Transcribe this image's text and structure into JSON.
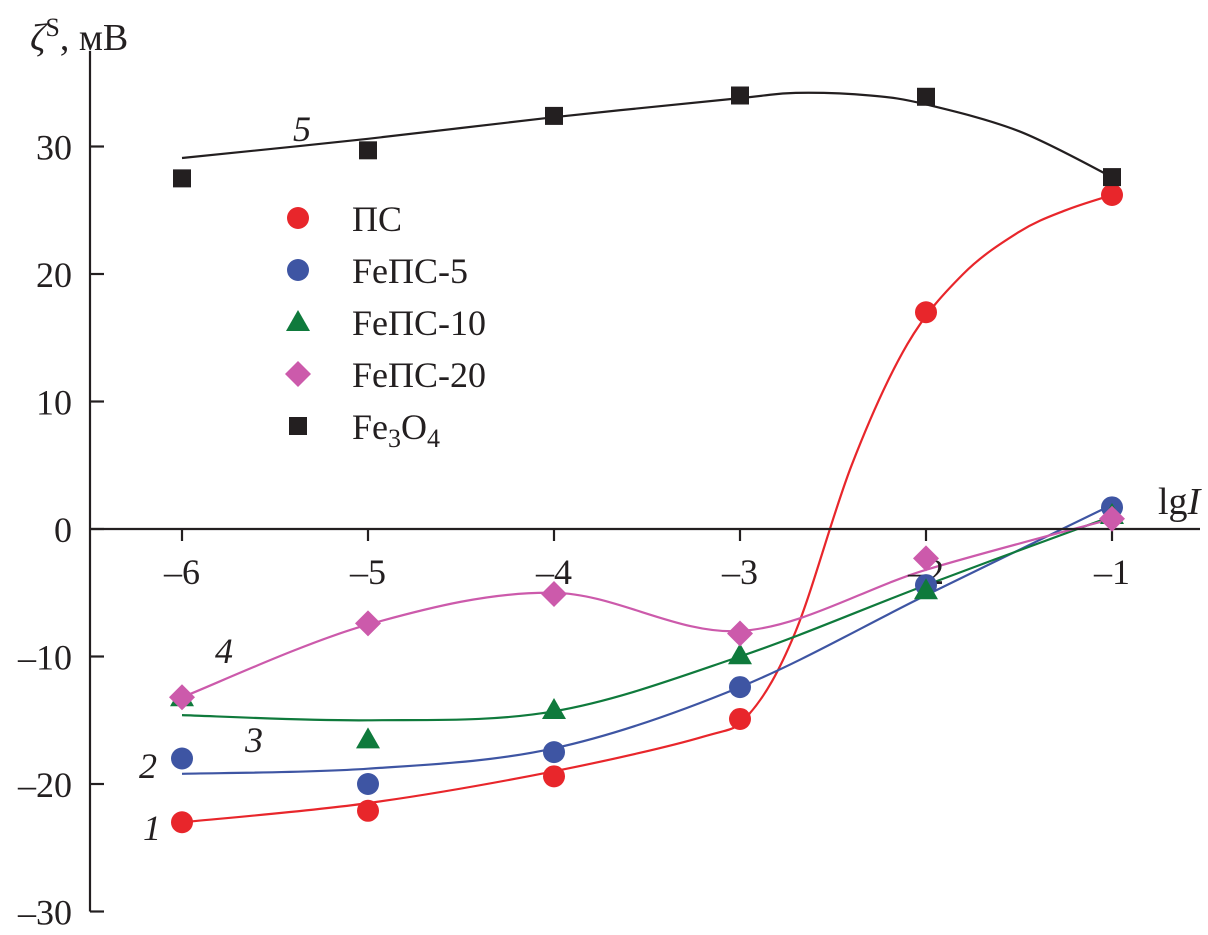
{
  "chart_data": {
    "type": "scatter",
    "title": "",
    "xlabel": "lgI",
    "xlabel_parts": [
      "lg",
      "I"
    ],
    "ylabel": "ζS, мВ",
    "ylabel_parts": [
      "ζ",
      "S",
      ", мВ"
    ],
    "xlim": [
      -6.55,
      -0.5
    ],
    "ylim": [
      -30,
      37
    ],
    "x_ticks": [
      -6,
      -5,
      -4,
      -3,
      -2,
      -1
    ],
    "x_tick_labels": [
      "–6",
      "–5",
      "–4",
      "–3",
      "–2",
      "–1"
    ],
    "y_ticks": [
      -30,
      -20,
      -10,
      0,
      10,
      20,
      30
    ],
    "y_tick_labels": [
      "–30",
      "–20",
      "–10",
      "0",
      "10",
      "20",
      "30"
    ],
    "grid": false,
    "legend_position": "upper-left",
    "series": [
      {
        "name": "ПС",
        "curve_label": "1",
        "color": "#e8262b",
        "marker": "circle",
        "x": [
          -6,
          -5,
          -4,
          -3,
          -2,
          -1
        ],
        "y": [
          -23.0,
          -22.1,
          -19.4,
          -14.9,
          17.0,
          26.2
        ],
        "fit": [
          [
            -6,
            -23.0
          ],
          [
            -5,
            -21.5
          ],
          [
            -4,
            -19.0
          ],
          [
            -3.2,
            -16.3
          ],
          [
            -2.95,
            -14.5
          ],
          [
            -2.7,
            -8.0
          ],
          [
            -2.4,
            5.0
          ],
          [
            -2.1,
            14.5
          ],
          [
            -1.8,
            20.0
          ],
          [
            -1.5,
            23.3
          ],
          [
            -1.25,
            25.0
          ],
          [
            -1.0,
            26.2
          ]
        ]
      },
      {
        "name": "FeПС-5",
        "curve_label": "2",
        "color": "#3e55a3",
        "marker": "circle",
        "x": [
          -6,
          -5,
          -4,
          -3,
          -2,
          -1
        ],
        "y": [
          -18.0,
          -20.0,
          -17.5,
          -12.4,
          -4.4,
          1.7
        ],
        "fit": [
          [
            -6,
            -19.2
          ],
          [
            -5,
            -18.8
          ],
          [
            -4,
            -17.2
          ],
          [
            -3,
            -12.4
          ],
          [
            -2,
            -5.2
          ],
          [
            -1,
            1.9
          ]
        ]
      },
      {
        "name": "FeПС-10",
        "curve_label": "3",
        "color": "#0f7a3c",
        "marker": "triangle",
        "x": [
          -6,
          -5,
          -4,
          -3,
          -2,
          -1
        ],
        "y": [
          -13.2,
          -16.5,
          -14.2,
          -9.9,
          -4.8,
          1.1
        ],
        "fit": [
          [
            -6,
            -14.6
          ],
          [
            -5,
            -15.0
          ],
          [
            -4,
            -14.3
          ],
          [
            -3,
            -10.0
          ],
          [
            -2,
            -4.4
          ],
          [
            -1,
            1.0
          ]
        ]
      },
      {
        "name": "FeПС-20",
        "curve_label": "4",
        "color": "#cc5aab",
        "marker": "diamond",
        "x": [
          -6,
          -5,
          -4,
          -3,
          -2,
          -1
        ],
        "y": [
          -13.2,
          -7.4,
          -5.1,
          -8.2,
          -2.3,
          0.8
        ],
        "fit": [
          [
            -6,
            -13.2
          ],
          [
            -5,
            -7.5
          ],
          [
            -4,
            -5.0
          ],
          [
            -3,
            -8.0
          ],
          [
            -2,
            -3.2
          ],
          [
            -1,
            0.8
          ]
        ]
      },
      {
        "name": "Fe3O4",
        "name_parts": [
          "Fe",
          "3",
          "O",
          "4"
        ],
        "curve_label": "5",
        "color": "#231f20",
        "marker": "square",
        "x": [
          -6,
          -5,
          -4,
          -3,
          -2,
          -1
        ],
        "y": [
          27.5,
          29.7,
          32.4,
          34.0,
          33.9,
          27.6
        ],
        "fit": [
          [
            -6,
            29.1
          ],
          [
            -5,
            30.6
          ],
          [
            -4,
            32.3
          ],
          [
            -3,
            33.8
          ],
          [
            -2.7,
            34.2
          ],
          [
            -2.3,
            34.0
          ],
          [
            -2,
            33.3
          ],
          [
            -1.5,
            31.2
          ],
          [
            -1.0,
            27.6
          ]
        ]
      }
    ]
  }
}
